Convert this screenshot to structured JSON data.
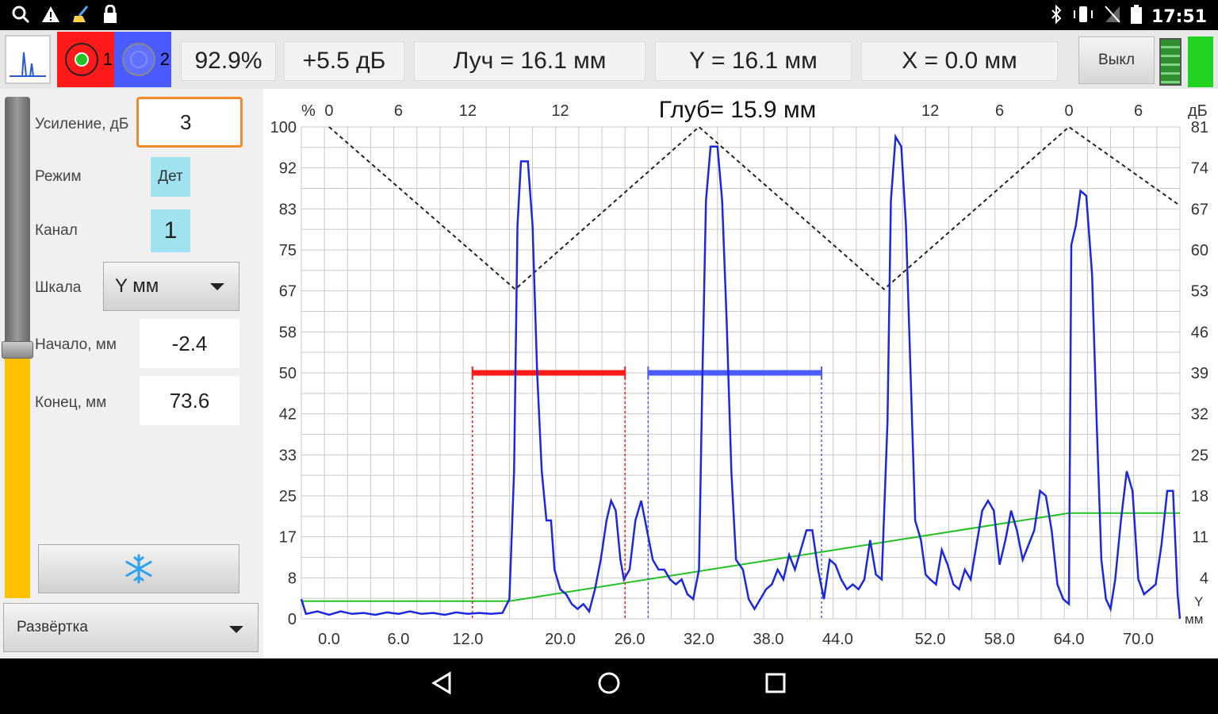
{
  "status_bar": {
    "left_icons": [
      "search-icon",
      "warning-icon",
      "broom-icon",
      "lock-icon"
    ],
    "right_icons": [
      "bluetooth-icon",
      "vibrate-icon",
      "no-signal-icon",
      "battery-icon"
    ],
    "time": "17:51"
  },
  "toolbar": {
    "channel1_label": "1",
    "channel2_label": "2",
    "amplitude": "92.9%",
    "gain_delta": "+5.5 дБ",
    "beam": "Луч = 16.1 мм",
    "y_value": "Y = 16.1 мм",
    "x_value": "X = 0.0 мм",
    "off_button": "Выкл"
  },
  "left_panel": {
    "gain_label": "Усиление, дБ",
    "gain_value": "3",
    "mode_label": "Режим",
    "mode_value": "Дет",
    "channel_label": "Канал",
    "channel_value": "1",
    "scale_label": "Шкала",
    "scale_value": "Y мм",
    "start_label": "Начало, мм",
    "start_value": "-2.4",
    "end_label": "Конец, мм",
    "end_value": "73.6",
    "freeze_icon": "snowflake-icon",
    "sweep_label": "Развёртка",
    "slider_level": 0.5
  },
  "chart_data": {
    "type": "line",
    "title": "Глуб= 15.9 мм",
    "left_unit": "%",
    "right_unit": "дБ",
    "x_unit": "Y\nмм",
    "x_range": [
      -2.4,
      73.6
    ],
    "x_ticks": [
      "0.0",
      "6.0",
      "12.0",
      "20.0",
      "26.0",
      "32.0",
      "38.0",
      "44.0",
      "52.0",
      "58.0",
      "64.0",
      "70.0"
    ],
    "x_tick_values": [
      0,
      6,
      12,
      20,
      26,
      32,
      38,
      44,
      52,
      58,
      64,
      70
    ],
    "y_range": [
      0,
      100
    ],
    "y_ticks_left": [
      "0",
      "8",
      "17",
      "25",
      "33",
      "42",
      "50",
      "58",
      "67",
      "75",
      "83",
      "92",
      "100"
    ],
    "y_ticks_right": [
      "",
      "4",
      "11",
      "18",
      "25",
      "32",
      "39",
      "46",
      "53",
      "60",
      "67",
      "74",
      "81"
    ],
    "top_ticks": [
      "0",
      "6",
      "12",
      "12",
      "12",
      "6",
      "0",
      "6"
    ],
    "top_tick_x": [
      0,
      6,
      12,
      20,
      52,
      58,
      64,
      70
    ],
    "grid": true,
    "echo_signal": [
      [
        -2.4,
        4
      ],
      [
        -2.0,
        1
      ],
      [
        -1,
        1.5
      ],
      [
        0,
        0.8
      ],
      [
        1,
        1.5
      ],
      [
        2,
        1
      ],
      [
        3,
        1.2
      ],
      [
        4,
        0.8
      ],
      [
        5,
        1.3
      ],
      [
        6,
        1
      ],
      [
        7,
        1.5
      ],
      [
        8,
        1
      ],
      [
        9,
        1.2
      ],
      [
        10,
        0.8
      ],
      [
        11,
        1.3
      ],
      [
        12,
        1
      ],
      [
        13,
        1.2
      ],
      [
        14,
        1
      ],
      [
        15,
        1.2
      ],
      [
        15.6,
        4
      ],
      [
        16,
        30
      ],
      [
        16.3,
        80
      ],
      [
        16.6,
        93
      ],
      [
        17.2,
        93
      ],
      [
        17.6,
        80
      ],
      [
        18,
        50
      ],
      [
        18.4,
        30
      ],
      [
        18.8,
        20
      ],
      [
        19.2,
        20
      ],
      [
        19.5,
        10
      ],
      [
        20,
        6
      ],
      [
        20.5,
        5
      ],
      [
        21,
        3
      ],
      [
        21.5,
        2
      ],
      [
        22,
        3
      ],
      [
        22.5,
        1.5
      ],
      [
        23,
        6
      ],
      [
        23.5,
        12
      ],
      [
        24,
        20
      ],
      [
        24.4,
        24
      ],
      [
        24.8,
        22
      ],
      [
        25.2,
        12
      ],
      [
        25.5,
        8
      ],
      [
        26,
        10
      ],
      [
        26.5,
        20
      ],
      [
        27,
        24
      ],
      [
        27.5,
        18
      ],
      [
        28,
        12
      ],
      [
        28.5,
        10
      ],
      [
        29,
        10
      ],
      [
        29.5,
        8
      ],
      [
        30,
        7
      ],
      [
        30.5,
        8
      ],
      [
        31,
        5
      ],
      [
        31.5,
        4
      ],
      [
        32,
        10
      ],
      [
        32.3,
        50
      ],
      [
        32.6,
        85
      ],
      [
        33,
        96
      ],
      [
        33.6,
        96
      ],
      [
        34,
        85
      ],
      [
        34.4,
        60
      ],
      [
        34.8,
        30
      ],
      [
        35.2,
        12
      ],
      [
        35.8,
        10
      ],
      [
        36.3,
        4
      ],
      [
        36.8,
        2
      ],
      [
        37.3,
        4
      ],
      [
        37.8,
        6
      ],
      [
        38.3,
        7
      ],
      [
        38.8,
        10
      ],
      [
        39.3,
        8
      ],
      [
        39.8,
        13
      ],
      [
        40.3,
        10
      ],
      [
        40.8,
        14
      ],
      [
        41.3,
        18
      ],
      [
        41.8,
        18
      ],
      [
        42.3,
        10
      ],
      [
        42.8,
        4
      ],
      [
        43.3,
        12
      ],
      [
        43.8,
        11
      ],
      [
        44.3,
        8
      ],
      [
        44.8,
        6
      ],
      [
        45.3,
        7
      ],
      [
        45.8,
        6
      ],
      [
        46.3,
        8
      ],
      [
        46.8,
        16
      ],
      [
        47.3,
        9
      ],
      [
        47.8,
        8
      ],
      [
        48.3,
        40
      ],
      [
        48.6,
        85
      ],
      [
        49,
        98
      ],
      [
        49.5,
        96
      ],
      [
        49.9,
        80
      ],
      [
        50.3,
        50
      ],
      [
        50.7,
        20
      ],
      [
        51.2,
        16
      ],
      [
        51.6,
        9
      ],
      [
        52,
        8
      ],
      [
        52.5,
        7
      ],
      [
        53,
        14
      ],
      [
        53.5,
        11
      ],
      [
        54,
        7
      ],
      [
        54.5,
        6
      ],
      [
        55,
        10
      ],
      [
        55.5,
        8
      ],
      [
        56,
        15
      ],
      [
        56.5,
        22
      ],
      [
        57,
        24
      ],
      [
        57.5,
        22
      ],
      [
        58,
        11
      ],
      [
        58.5,
        16
      ],
      [
        59,
        22
      ],
      [
        59.5,
        18
      ],
      [
        60,
        12
      ],
      [
        60.5,
        15
      ],
      [
        61,
        18
      ],
      [
        61.5,
        26
      ],
      [
        62,
        25
      ],
      [
        62.5,
        18
      ],
      [
        63,
        7
      ],
      [
        63.5,
        4
      ],
      [
        64,
        3
      ],
      [
        64.2,
        76
      ],
      [
        64.6,
        80
      ],
      [
        65,
        87
      ],
      [
        65.5,
        86
      ],
      [
        66,
        70
      ],
      [
        66.4,
        40
      ],
      [
        66.8,
        12
      ],
      [
        67.2,
        4
      ],
      [
        67.6,
        2
      ],
      [
        68,
        8
      ],
      [
        68.5,
        20
      ],
      [
        69,
        30
      ],
      [
        69.5,
        26
      ],
      [
        70,
        8
      ],
      [
        70.5,
        5
      ],
      [
        71,
        6
      ],
      [
        71.5,
        7
      ],
      [
        72,
        15
      ],
      [
        72.5,
        26
      ],
      [
        73,
        26
      ],
      [
        73.4,
        5
      ],
      [
        73.6,
        0
      ]
    ],
    "dac_curve": [
      [
        -2.4,
        3.6
      ],
      [
        15.6,
        3.6
      ],
      [
        64,
        21.5
      ],
      [
        73.6,
        21.5
      ]
    ],
    "time_corrected_gain": [
      [
        0,
        100
      ],
      [
        16.1,
        67
      ],
      [
        32,
        100
      ],
      [
        48,
        67
      ],
      [
        64,
        100
      ],
      [
        73.6,
        84
      ]
    ],
    "gate1": {
      "start": 12.4,
      "end": 25.6,
      "level": 50,
      "color": "#ff1a1a"
    },
    "gate2": {
      "start": 27.6,
      "end": 42.6,
      "level": 50,
      "color": "#4a5cff"
    },
    "signal_color": "#1a28e0",
    "dac_color": "#22c322"
  },
  "nav_bar": {
    "back_icon": "back-icon",
    "home_icon": "home-icon",
    "recents_icon": "recents-icon"
  }
}
